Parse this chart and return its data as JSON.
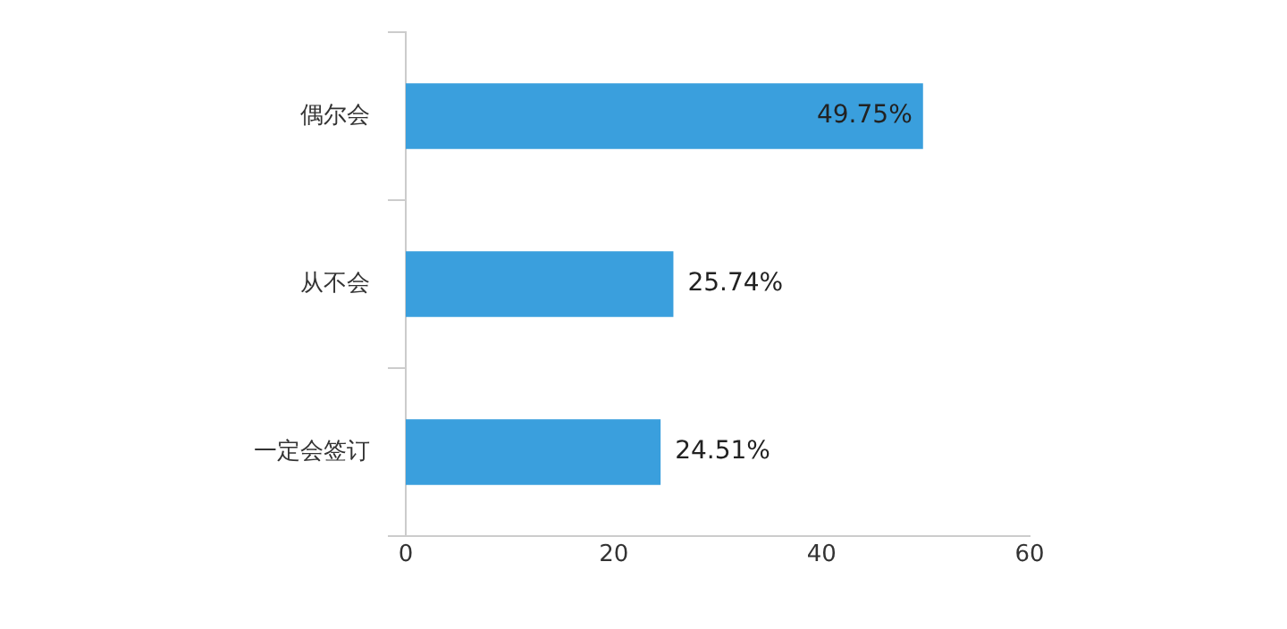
{
  "chart_data": {
    "type": "bar",
    "orientation": "horizontal",
    "categories": [
      "偶尔会",
      "从不会",
      "一定会签订"
    ],
    "values": [
      49.75,
      25.74,
      24.51
    ],
    "value_labels": [
      "49.75%",
      "25.74%",
      "24.51%"
    ],
    "color": "#3a9fdd",
    "xlim": [
      0,
      60
    ],
    "xticks": [
      0,
      20,
      40,
      60
    ],
    "grid": false,
    "legend": false
  }
}
